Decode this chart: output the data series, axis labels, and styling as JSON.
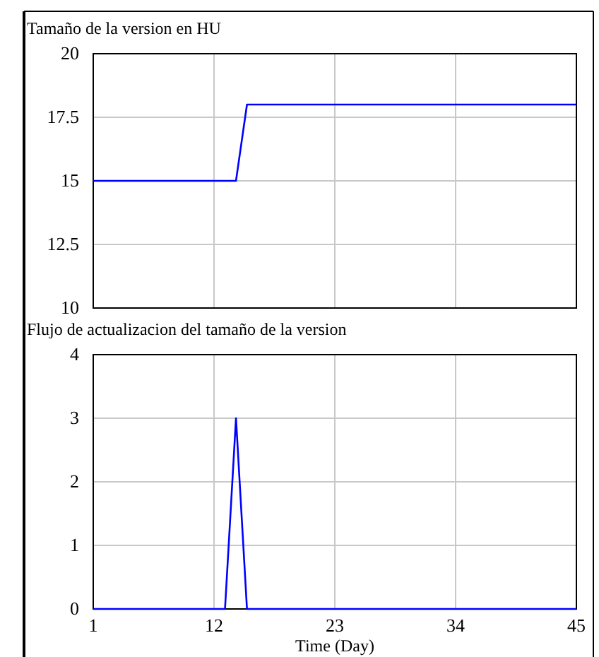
{
  "chart_data": [
    {
      "type": "line",
      "title": "Tamaño de la version en HU",
      "x": [
        1,
        14,
        15,
        45
      ],
      "series": [
        {
          "color": "#0000ff",
          "values": [
            15,
            15,
            18,
            18
          ]
        }
      ],
      "xlim": [
        1,
        45
      ],
      "xticks": [
        1,
        12,
        23,
        34,
        45
      ],
      "ylim": [
        10,
        20
      ],
      "yticks": [
        10,
        12.5,
        15,
        17.5,
        20
      ],
      "grid": true,
      "tick_labels": "y"
    },
    {
      "type": "line",
      "title": "Flujo de actualizacion del tamaño de la version",
      "xlabel": "Time (Day)",
      "x": [
        1,
        13,
        14,
        15,
        45
      ],
      "series": [
        {
          "color": "#0000ff",
          "values": [
            0,
            0,
            3,
            0,
            0
          ]
        }
      ],
      "xlim": [
        1,
        45
      ],
      "xticks": [
        1,
        12,
        23,
        34,
        45
      ],
      "ylim": [
        0,
        4
      ],
      "yticks": [
        0,
        1,
        2,
        3,
        4
      ],
      "grid": true
    }
  ]
}
